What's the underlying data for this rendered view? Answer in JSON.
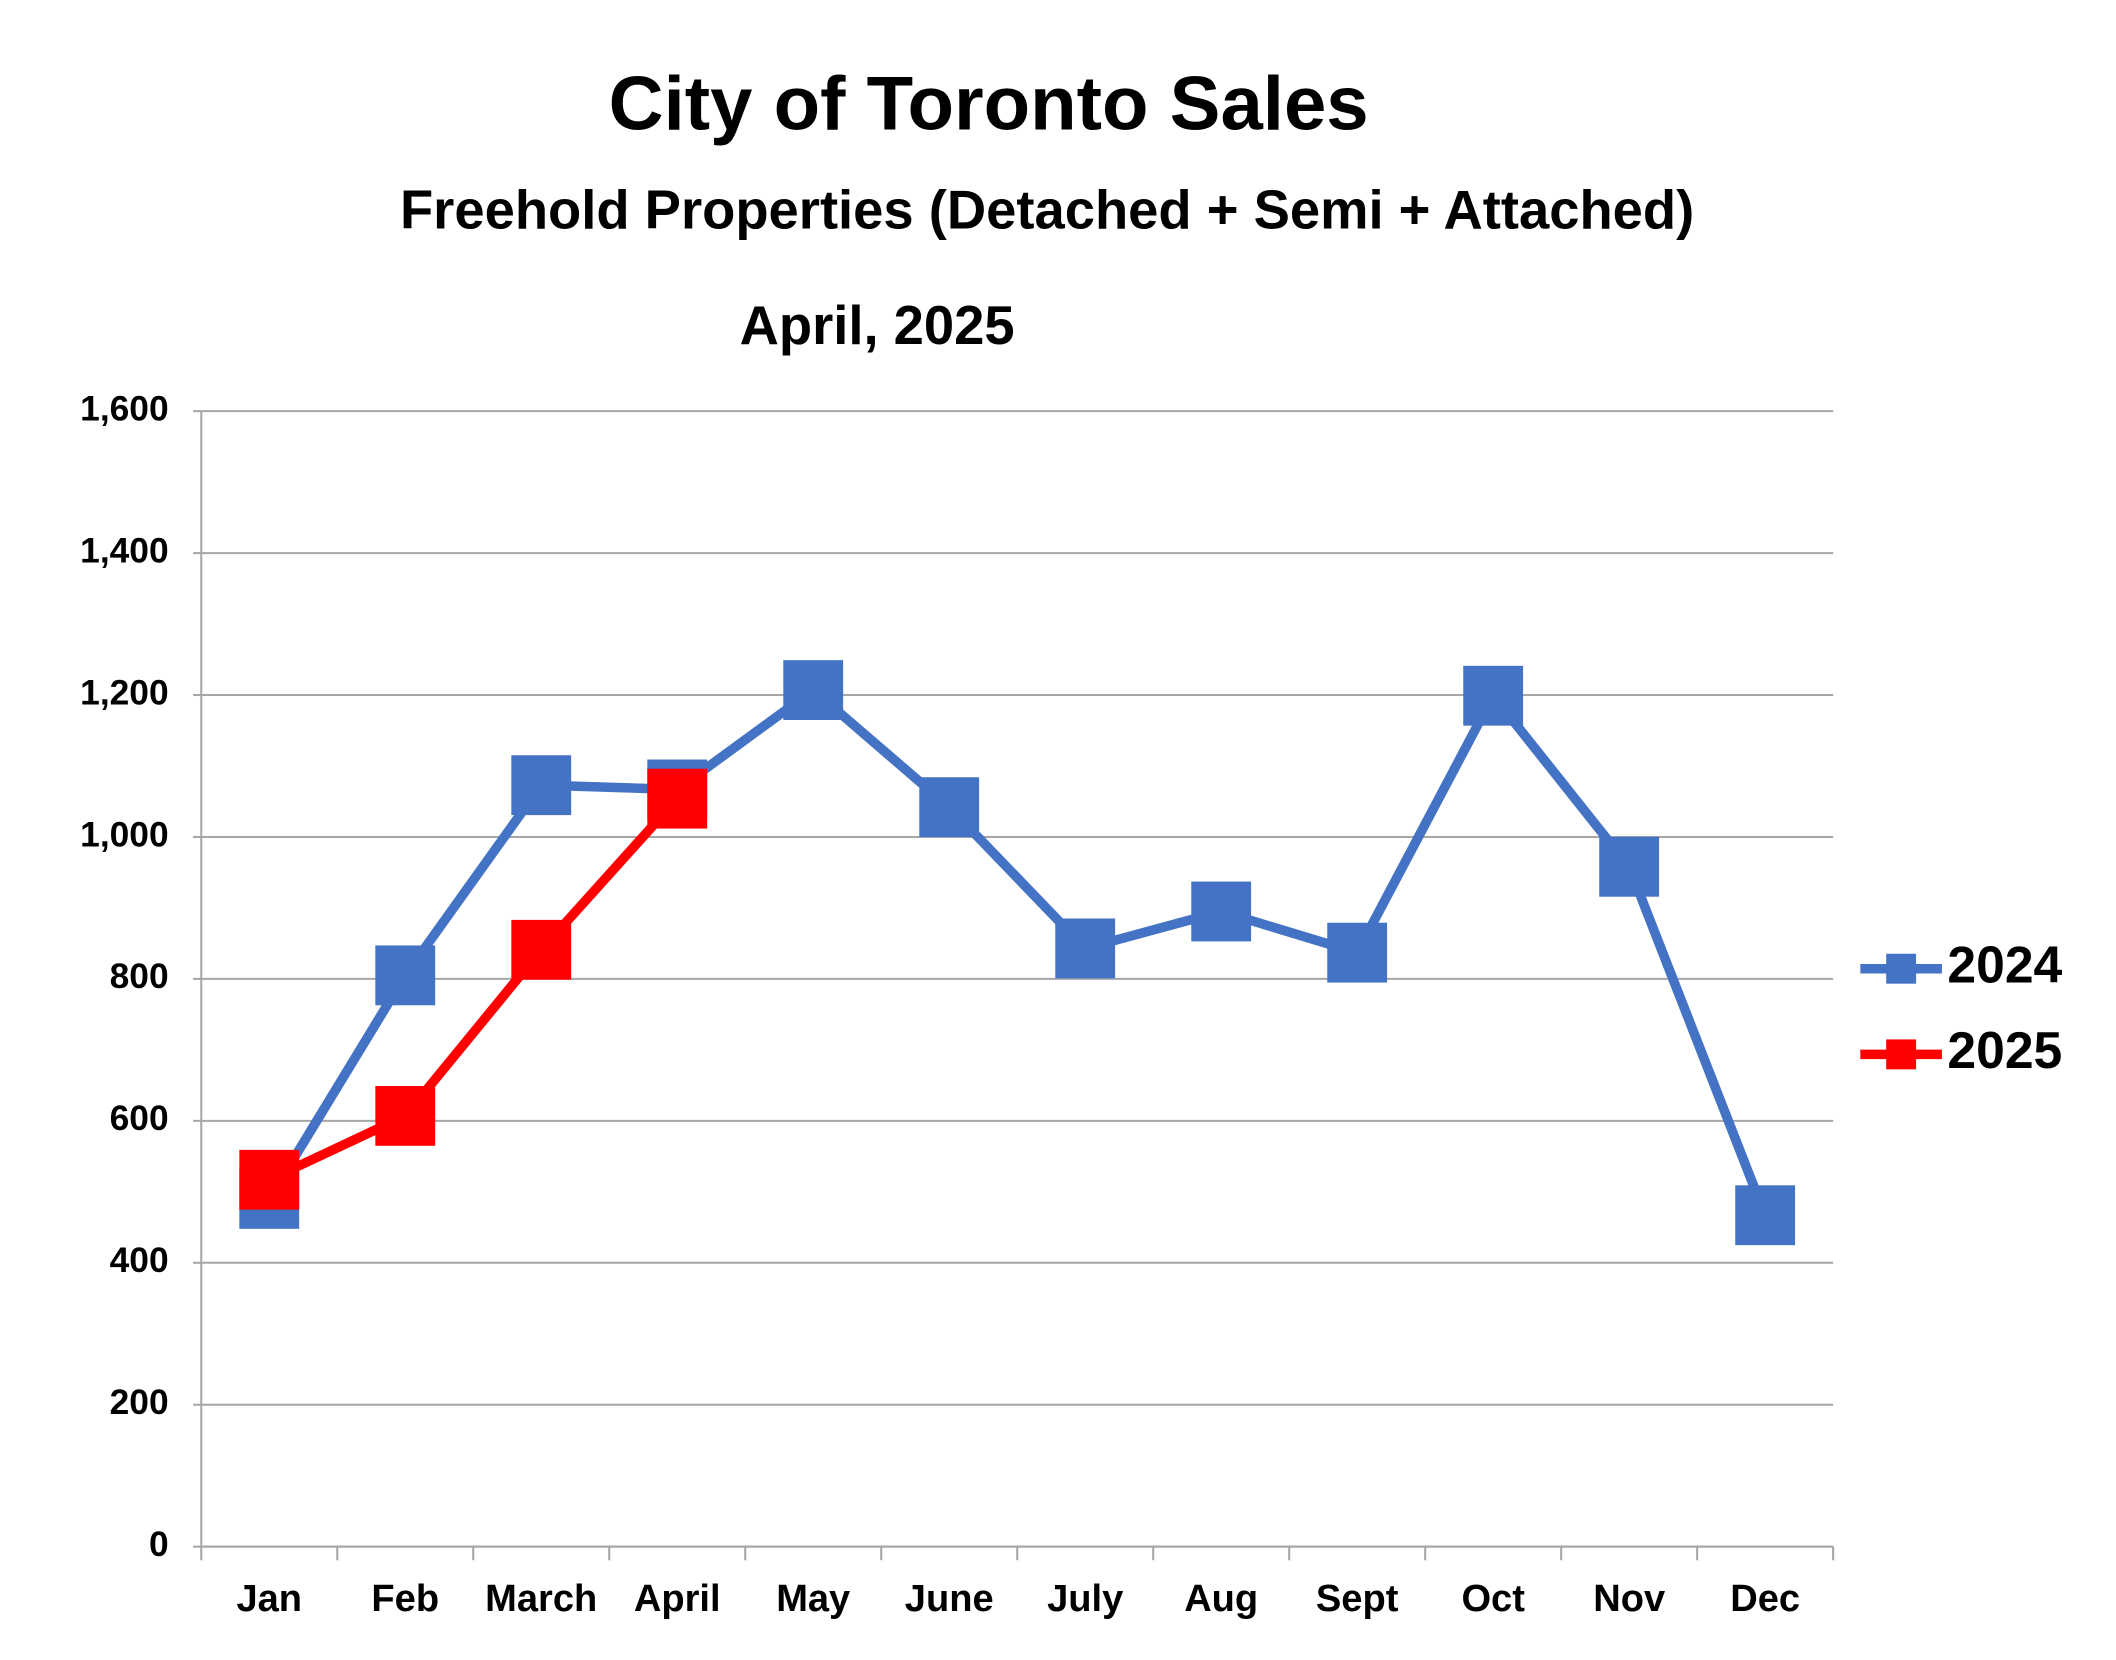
{
  "chart_data": {
    "type": "line",
    "title": "City of Toronto Sales",
    "subtitle": "Freehold Properties (Detached + Semi + Attached)",
    "annotation": "April, 2025",
    "categories": [
      "Jan",
      "Feb",
      "March",
      "April",
      "May",
      "June",
      "July",
      "Aug",
      "Sept",
      "Oct",
      "Nov",
      "Dec"
    ],
    "series": [
      {
        "name": "2024",
        "color": "#4472c4",
        "values": [
          490,
          805,
          1073,
          1067,
          1207,
          1042,
          843,
          895,
          837,
          1199,
          958,
          467
        ]
      },
      {
        "name": "2025",
        "color": "#ff0000",
        "values": [
          517,
          607,
          841,
          1054,
          null,
          null,
          null,
          null,
          null,
          null,
          null,
          null
        ]
      }
    ],
    "ylim": [
      0,
      1600
    ],
    "yticks": [
      0,
      200,
      400,
      600,
      800,
      {
        "value": 1000,
        "label": "1,000"
      },
      {
        "value": 1200,
        "label": "1,200"
      },
      {
        "value": 1400,
        "label": "1,400"
      },
      {
        "value": 1600,
        "label": "1,600"
      }
    ],
    "grid": true,
    "legend": "right"
  }
}
